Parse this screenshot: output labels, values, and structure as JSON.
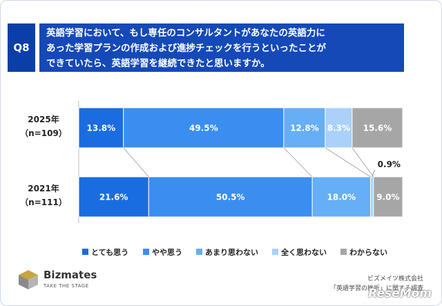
{
  "question": {
    "label": "Q8",
    "text": "英語学習において、もし専任のコンサルタントがあなたの英語力に\nあった学習プランの作成および進捗チェックを行うといったことが\nできていたら、英語学習を継続できたと思いますか。"
  },
  "chart_data": {
    "type": "bar",
    "stacked": true,
    "orientation": "horizontal",
    "percent": true,
    "categories": [
      {
        "year": "2025年",
        "n": "（n=109）"
      },
      {
        "year": "2021年",
        "n": "（n=111）"
      }
    ],
    "series": [
      {
        "name": "とても思う",
        "color": "#1a6de0",
        "values": [
          13.8,
          21.6
        ],
        "labels": [
          "13.8%",
          "21.6%"
        ]
      },
      {
        "name": "やや思う",
        "color": "#3a8ef0",
        "values": [
          49.5,
          50.5
        ],
        "labels": [
          "49.5%",
          "50.5%"
        ]
      },
      {
        "name": "あまり思わない",
        "color": "#66aef5",
        "values": [
          12.8,
          18.0
        ],
        "labels": [
          "12.8%",
          "18.0%"
        ]
      },
      {
        "name": "全く思わない",
        "color": "#a9d1fa",
        "values": [
          8.3,
          0.9
        ],
        "labels": [
          "8.3%",
          "0.9%"
        ]
      },
      {
        "name": "わからない",
        "color": "#a6a6a6",
        "values": [
          15.6,
          9.0
        ],
        "labels": [
          "15.6%",
          "9.0%"
        ]
      }
    ],
    "legend_position": "bottom"
  },
  "branding": {
    "logo_name": "Bizmates",
    "logo_tagline": "TAKE THE STAGE",
    "source_line1": "ビズメイツ株式会社",
    "source_line2": "「英語学習の挫折」に関する調査",
    "watermark": "ReseMom"
  }
}
